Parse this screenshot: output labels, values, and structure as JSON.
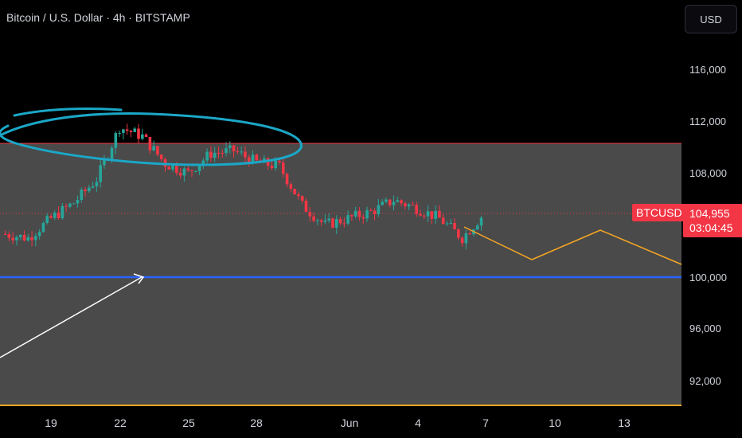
{
  "header": {
    "title": "Bitcoin / U.S. Dollar · 4h · BITSTAMP",
    "currency_button": "USD"
  },
  "price_scale": {
    "ticks": [
      "116,000",
      "112,000",
      "108,000",
      "100,000",
      "96,000",
      "92,000"
    ],
    "tick_values": [
      116000,
      112000,
      108000,
      100000,
      96000,
      92000
    ]
  },
  "time_scale": {
    "labels": [
      "19",
      "22",
      "25",
      "28",
      "Jun",
      "4",
      "7",
      "10",
      "13"
    ]
  },
  "last_price": {
    "symbol": "BTCUSD",
    "price": "104,955",
    "countdown": "03:04:45",
    "value": 104955,
    "color": "#f23645"
  },
  "colors": {
    "up": "#26a69a",
    "down": "#f23645",
    "zone": "#4a4a4a",
    "zone_top_line": "#f23645",
    "support_line": "#2962ff",
    "projection": "#f5a623",
    "ellipse": "#1ba7c7",
    "arrow": "#ffffff"
  },
  "chart_data": {
    "type": "candlestick",
    "title": "Bitcoin / U.S. Dollar · 4h · BITSTAMP",
    "ylim": [
      90000,
      118000
    ],
    "yscale": "linear",
    "x_axis": [
      "19",
      "22",
      "25",
      "28",
      "Jun",
      "4",
      "7",
      "10",
      "13"
    ],
    "approx_close_path": [
      {
        "x": "17",
        "price": 103300
      },
      {
        "x": "18",
        "price": 103000
      },
      {
        "x": "19",
        "price": 104500
      },
      {
        "x": "20",
        "price": 105700
      },
      {
        "x": "21",
        "price": 107500
      },
      {
        "x": "22",
        "price": 111500
      },
      {
        "x": "23",
        "price": 110800
      },
      {
        "x": "24",
        "price": 108700
      },
      {
        "x": "25",
        "price": 108000
      },
      {
        "x": "26",
        "price": 109500
      },
      {
        "x": "27",
        "price": 109700
      },
      {
        "x": "28",
        "price": 108800
      },
      {
        "x": "29",
        "price": 108500
      },
      {
        "x": "30",
        "price": 105500
      },
      {
        "x": "31",
        "price": 104000
      },
      {
        "x": "Jun",
        "price": 104500
      },
      {
        "x": "2",
        "price": 105000
      },
      {
        "x": "3",
        "price": 105900
      },
      {
        "x": "4",
        "price": 105300
      },
      {
        "x": "5",
        "price": 104500
      },
      {
        "x": "6",
        "price": 103000
      },
      {
        "x": "7",
        "price": 104955
      }
    ],
    "horizontal_zone": {
      "top": 110300,
      "bottom": 90300
    },
    "support_line": 100000,
    "projection_path": [
      {
        "x": "6",
        "price": 104200
      },
      {
        "x": "9",
        "price": 101300
      },
      {
        "x": "12",
        "price": 103900
      },
      {
        "x": "15",
        "price": 100800
      }
    ],
    "last_price": 104955
  }
}
